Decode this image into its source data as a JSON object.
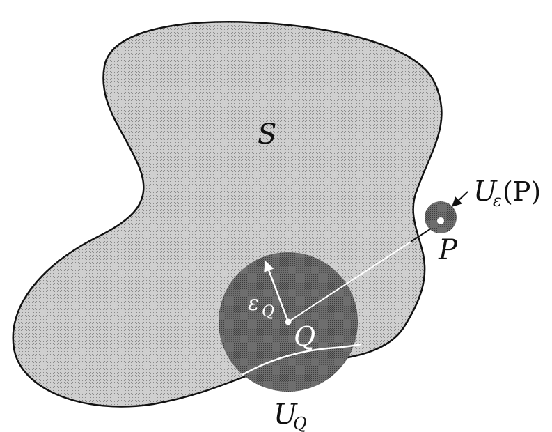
{
  "figure": {
    "labels": {
      "set_name": "S",
      "neighborhood_P_main": "U",
      "neighborhood_P_sub": "ε",
      "neighborhood_P_arg": "(P)",
      "point_P": "P",
      "point_Q": "Q",
      "radius_main": "ε",
      "radius_sub": "Q",
      "neighborhood_Q_main": "U",
      "neighborhood_Q_sub": "Q"
    },
    "colors": {
      "region_fill": "#c4c4c4",
      "disk_fill": "#6a6a6a",
      "outline": "#111111",
      "inner_lines": "#ffffff"
    }
  }
}
